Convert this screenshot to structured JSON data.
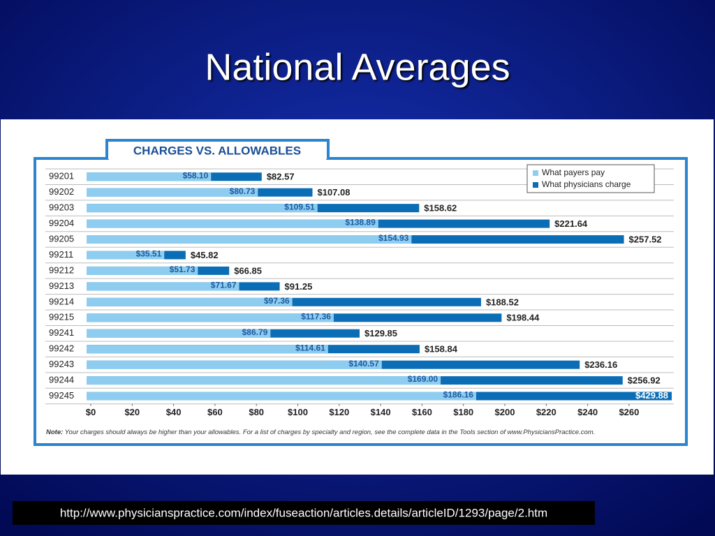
{
  "title": "National Averages",
  "url": "http://www.physicianspractice.com/index/fuseaction/articles.details/articleID/1293/page/2.htm",
  "chart_data": {
    "type": "bar",
    "orientation": "horizontal",
    "title": "CHARGES VS. ALLOWABLES",
    "note": {
      "label": "Note:",
      "text": "Your charges should always be higher than your allowables. For a list of charges by specialty and region, see the complete data in the Tools section of www.PhysiciansPractice.com."
    },
    "categories": [
      "99201",
      "99202",
      "99203",
      "99204",
      "99205",
      "99211",
      "99212",
      "99213",
      "99214",
      "99215",
      "99241",
      "99242",
      "99243",
      "99244",
      "99245"
    ],
    "series": [
      {
        "name": "What payers pay",
        "color": "#8ecdf0",
        "values": [
          58.1,
          80.73,
          109.51,
          138.89,
          154.93,
          35.51,
          51.73,
          71.67,
          97.36,
          117.36,
          86.79,
          114.61,
          140.57,
          169.0,
          186.16
        ],
        "value_labels": [
          "$58.10",
          "$80.73",
          "$109.51",
          "$138.89",
          "$154.93",
          "$35.51",
          "$51.73",
          "$71.67",
          "$97.36",
          "$117.36",
          "$86.79",
          "$114.61",
          "$140.57",
          "$169.00",
          "$186.16"
        ]
      },
      {
        "name": "What physicians charge",
        "color": "#0a6db5",
        "values": [
          82.57,
          107.08,
          158.62,
          221.64,
          257.52,
          45.82,
          66.85,
          91.25,
          188.52,
          198.44,
          129.85,
          158.84,
          236.16,
          256.92,
          429.88
        ],
        "value_labels": [
          "$82.57",
          "$107.08",
          "$158.62",
          "$221.64",
          "$257.52",
          "$45.82",
          "$66.85",
          "$91.25",
          "$188.52",
          "$198.44",
          "$129.85",
          "$158.84",
          "$236.16",
          "$256.92",
          "$429.88"
        ]
      }
    ],
    "xlim": [
      0,
      280
    ],
    "xticks": [
      {
        "value": 0,
        "label": "$0"
      },
      {
        "value": 20,
        "label": "$20"
      },
      {
        "value": 40,
        "label": "$40"
      },
      {
        "value": 60,
        "label": "$60"
      },
      {
        "value": 80,
        "label": "$80"
      },
      {
        "value": 100,
        "label": "$100"
      },
      {
        "value": 120,
        "label": "$120"
      },
      {
        "value": 140,
        "label": "$140"
      },
      {
        "value": 160,
        "label": "$160"
      },
      {
        "value": 180,
        "label": "$180"
      },
      {
        "value": 200,
        "label": "$200"
      },
      {
        "value": 220,
        "label": "$220"
      },
      {
        "value": 240,
        "label": "$240"
      },
      {
        "value": 260,
        "label": "$260"
      }
    ],
    "legend": "top-right"
  }
}
